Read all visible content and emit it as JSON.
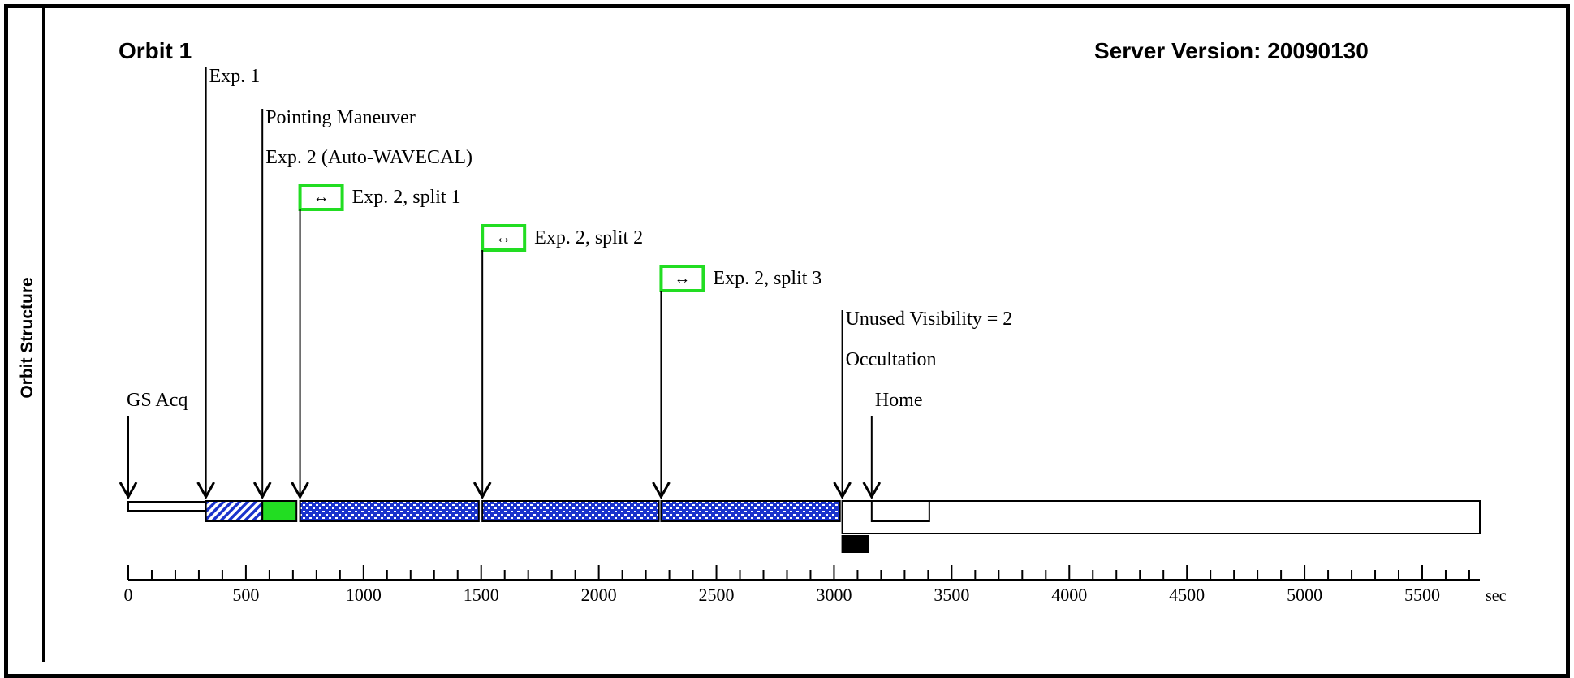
{
  "side_label": "Orbit Structure",
  "orbit_title": "Orbit 1",
  "server_version": "Server Version: 20090130",
  "colors": {
    "green": "#22dd22",
    "blue_pattern": "#1a33cc",
    "occultation": "#000000"
  },
  "events": [
    {
      "label": "GS Acq",
      "t": 0
    },
    {
      "label": "Exp. 1",
      "t": 330
    },
    {
      "label": "Pointing Maneuver",
      "t": 570
    },
    {
      "label": "Exp. 2 (Auto-WAVECAL)",
      "t": 570
    },
    {
      "label": "Exp. 2, split 1",
      "t": 730,
      "split_icon": "double-arrow-icon"
    },
    {
      "label": "Exp. 2, split 2",
      "t": 1505,
      "split_icon": "double-arrow-icon"
    },
    {
      "label": "Exp. 2, split 3",
      "t": 2265,
      "split_icon": "double-arrow-icon"
    },
    {
      "label": "Unused Visibility = 2",
      "t": 3035
    },
    {
      "label": "Occultation",
      "t": 3035
    },
    {
      "label": "Home",
      "t": 3160
    }
  ],
  "segments": [
    {
      "name": "gs-acq",
      "start": 0,
      "end": 330,
      "fill": "blank"
    },
    {
      "name": "exp1",
      "start": 330,
      "end": 570,
      "fill": "hatch"
    },
    {
      "name": "wavecal",
      "start": 570,
      "end": 715,
      "fill": "green"
    },
    {
      "name": "split1",
      "start": 730,
      "end": 1490,
      "fill": "dots"
    },
    {
      "name": "split2",
      "start": 1505,
      "end": 2255,
      "fill": "dots"
    },
    {
      "name": "split3",
      "start": 2265,
      "end": 3025,
      "fill": "dots"
    },
    {
      "name": "home",
      "start": 3160,
      "end": 3405,
      "fill": "blank"
    },
    {
      "name": "visibility",
      "start": 3035,
      "end": 5745,
      "fill": "blank"
    },
    {
      "name": "occultation",
      "start": 3035,
      "end": 3145,
      "fill": "black"
    }
  ],
  "axis": {
    "min": 0,
    "max": 5745,
    "major_step": 500,
    "minor_step": 100,
    "tick_labels": [
      "0",
      "500",
      "1000",
      "1500",
      "2000",
      "2500",
      "3000",
      "3500",
      "4000",
      "4500",
      "5000",
      "5500"
    ],
    "unit": "sec"
  }
}
